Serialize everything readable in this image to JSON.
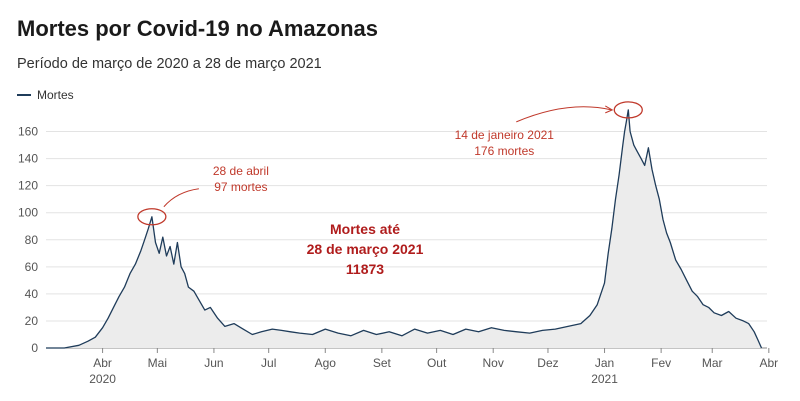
{
  "header": {
    "title": "Mortes por Covid-19 no Amazonas",
    "subtitle": "Período de março de 2020 a 28 de março 2021"
  },
  "colors": {
    "line": "#1f3c5a",
    "area": "#ececec",
    "grid": "#e3e3e3",
    "annotation": "#c0392b",
    "total": "#b01c1c"
  },
  "chart_data": {
    "type": "area",
    "series": [
      {
        "name": "Mortes",
        "x": [
          "2020-03-01",
          "2020-03-11",
          "2020-03-19",
          "2020-03-24",
          "2020-03-28",
          "2020-04-01",
          "2020-04-04",
          "2020-04-07",
          "2020-04-10",
          "2020-04-13",
          "2020-04-16",
          "2020-04-19",
          "2020-04-22",
          "2020-04-24",
          "2020-04-26",
          "2020-04-28",
          "2020-04-30",
          "2020-05-02",
          "2020-05-04",
          "2020-05-06",
          "2020-05-08",
          "2020-05-10",
          "2020-05-12",
          "2020-05-14",
          "2020-05-16",
          "2020-05-18",
          "2020-05-21",
          "2020-05-24",
          "2020-05-27",
          "2020-05-30",
          "2020-06-03",
          "2020-06-07",
          "2020-06-12",
          "2020-06-17",
          "2020-06-22",
          "2020-06-27",
          "2020-07-03",
          "2020-07-08",
          "2020-07-13",
          "2020-07-18",
          "2020-07-25",
          "2020-08-01",
          "2020-08-08",
          "2020-08-15",
          "2020-08-22",
          "2020-08-29",
          "2020-09-05",
          "2020-09-12",
          "2020-09-19",
          "2020-09-26",
          "2020-10-03",
          "2020-10-10",
          "2020-10-17",
          "2020-10-24",
          "2020-10-31",
          "2020-11-07",
          "2020-11-14",
          "2020-11-21",
          "2020-11-28",
          "2020-12-05",
          "2020-12-12",
          "2020-12-19",
          "2020-12-24",
          "2020-12-28",
          "2021-01-01",
          "2021-01-03",
          "2021-01-05",
          "2021-01-07",
          "2021-01-09",
          "2021-01-11",
          "2021-01-12",
          "2021-01-13",
          "2021-01-14",
          "2021-01-15",
          "2021-01-17",
          "2021-01-19",
          "2021-01-21",
          "2021-01-23",
          "2021-01-25",
          "2021-01-27",
          "2021-01-29",
          "2021-01-31",
          "2021-02-02",
          "2021-02-04",
          "2021-02-06",
          "2021-02-09",
          "2021-02-12",
          "2021-02-15",
          "2021-02-18",
          "2021-02-21",
          "2021-02-24",
          "2021-02-27",
          "2021-03-02",
          "2021-03-06",
          "2021-03-10",
          "2021-03-14",
          "2021-03-18",
          "2021-03-21",
          "2021-03-24",
          "2021-03-26",
          "2021-03-28"
        ],
        "values": [
          0,
          0,
          2,
          5,
          8,
          15,
          22,
          30,
          38,
          45,
          55,
          62,
          72,
          80,
          88,
          97,
          78,
          70,
          82,
          68,
          75,
          62,
          78,
          60,
          55,
          45,
          42,
          35,
          28,
          30,
          22,
          16,
          18,
          14,
          10,
          12,
          14,
          13,
          12,
          11,
          10,
          14,
          11,
          9,
          13,
          10,
          12,
          9,
          14,
          11,
          13,
          10,
          14,
          12,
          15,
          13,
          12,
          11,
          13,
          14,
          16,
          18,
          24,
          32,
          48,
          70,
          88,
          110,
          128,
          150,
          160,
          168,
          176,
          160,
          150,
          145,
          140,
          135,
          148,
          132,
          120,
          110,
          95,
          85,
          78,
          65,
          58,
          50,
          42,
          38,
          32,
          30,
          26,
          24,
          27,
          22,
          20,
          18,
          12,
          6,
          0
        ]
      }
    ],
    "xlim": [
      "2020-03-01",
      "2021-03-31"
    ],
    "ylim": [
      0,
      170
    ],
    "yticks": [
      0,
      20,
      40,
      60,
      80,
      100,
      120,
      140,
      160
    ],
    "xticks": [
      {
        "date": "2020-04-01",
        "label": "Abr",
        "sub": "2020"
      },
      {
        "date": "2020-05-01",
        "label": "Mai",
        "sub": ""
      },
      {
        "date": "2020-06-01",
        "label": "Jun",
        "sub": ""
      },
      {
        "date": "2020-07-01",
        "label": "Jul",
        "sub": ""
      },
      {
        "date": "2020-08-01",
        "label": "Ago",
        "sub": ""
      },
      {
        "date": "2020-09-01",
        "label": "Set",
        "sub": ""
      },
      {
        "date": "2020-10-01",
        "label": "Out",
        "sub": ""
      },
      {
        "date": "2020-11-01",
        "label": "Nov",
        "sub": ""
      },
      {
        "date": "2020-12-01",
        "label": "Dez",
        "sub": ""
      },
      {
        "date": "2021-01-01",
        "label": "Jan",
        "sub": "2021"
      },
      {
        "date": "2021-02-01",
        "label": "Fev",
        "sub": ""
      },
      {
        "date": "2021-03-01",
        "label": "Mar",
        "sub": ""
      },
      {
        "date": "2021-04-01",
        "label": "Abr",
        "sub": ""
      }
    ],
    "grid": true,
    "legend": "top-left",
    "annotations": [
      {
        "date": "2020-04-28",
        "value": 97,
        "text": [
          "28 de abril",
          "97 mortes"
        ]
      },
      {
        "date": "2021-01-14",
        "value": 176,
        "text": [
          "14 de janeiro 2021",
          "176 mortes"
        ]
      }
    ],
    "total_box": [
      "Mortes até",
      "28 de março 2021",
      "11873"
    ]
  }
}
